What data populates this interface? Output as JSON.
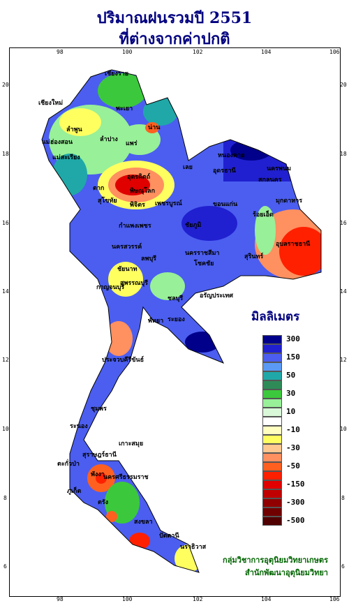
{
  "title": {
    "line1": "ปริมาณฝนรวมปี  2551",
    "line2": "ที่ต่างจากค่าปกติ"
  },
  "axes": {
    "lon_ticks": [
      "98",
      "100",
      "102",
      "104",
      "106"
    ],
    "lat_ticks": [
      "20",
      "18",
      "16",
      "14",
      "12",
      "10",
      "8",
      "6"
    ]
  },
  "legend": {
    "title": "มิลลิเมตร",
    "items": [
      {
        "label": "300",
        "color": "#00008b"
      },
      {
        "label": "",
        "color": "#2020d0"
      },
      {
        "label": "150",
        "color": "#4b5ef0"
      },
      {
        "label": "",
        "color": "#5a9af5"
      },
      {
        "label": "50",
        "color": "#20a8a8"
      },
      {
        "label": "",
        "color": "#2e8b57"
      },
      {
        "label": "30",
        "color": "#3cc83c"
      },
      {
        "label": "",
        "color": "#98f098"
      },
      {
        "label": "10",
        "color": "#d8f8d8"
      },
      {
        "label": "",
        "color": "#ffffff"
      },
      {
        "label": "-10",
        "color": "#ffffc0"
      },
      {
        "label": "",
        "color": "#ffff60"
      },
      {
        "label": "-30",
        "color": "#ffc890"
      },
      {
        "label": "",
        "color": "#ff9060"
      },
      {
        "label": "-50",
        "color": "#ff6020"
      },
      {
        "label": "",
        "color": "#ff2000"
      },
      {
        "label": "-150",
        "color": "#e00000"
      },
      {
        "label": "",
        "color": "#c00000"
      },
      {
        "label": "-300",
        "color": "#900000"
      },
      {
        "label": "",
        "color": "#700000"
      },
      {
        "label": "-500",
        "color": "#500000"
      }
    ]
  },
  "places": [
    {
      "name": "เชียงราย"
    },
    {
      "name": "เชียงใหม่"
    },
    {
      "name": "แม่ฮ่องสอน"
    },
    {
      "name": "พะเยา"
    },
    {
      "name": "ลำปาง"
    },
    {
      "name": "ลำพูน"
    },
    {
      "name": "น่าน"
    },
    {
      "name": "แพร่"
    },
    {
      "name": "แม่สะเรียง"
    },
    {
      "name": "อุตรดิตถ์"
    },
    {
      "name": "ตาก"
    },
    {
      "name": "พิษณุโลก"
    },
    {
      "name": "สุโขทัย"
    },
    {
      "name": "กำแพงเพชร"
    },
    {
      "name": "เพชรบูรณ์"
    },
    {
      "name": "พิจิตร"
    },
    {
      "name": "เลย"
    },
    {
      "name": "หนองคาย"
    },
    {
      "name": "อุดรธานี"
    },
    {
      "name": "นครพนม"
    },
    {
      "name": "สกลนคร"
    },
    {
      "name": "มุกดาหาร"
    },
    {
      "name": "ขอนแก่น"
    },
    {
      "name": "ชัยภูมิ"
    },
    {
      "name": "ร้อยเอ็ด"
    },
    {
      "name": "อุบลราชธานี"
    },
    {
      "name": "นครสวรรค์"
    },
    {
      "name": "ชัยนาท"
    },
    {
      "name": "ลพบุรี"
    },
    {
      "name": "สุพรรณบุรี"
    },
    {
      "name": "กาญจนบุรี"
    },
    {
      "name": "นครราชสีมา"
    },
    {
      "name": "โชคชัย"
    },
    {
      "name": "สุรินทร์"
    },
    {
      "name": "อรัญประเทศ"
    },
    {
      "name": "ชลบุรี"
    },
    {
      "name": "พัทยา"
    },
    {
      "name": "ระยอง"
    },
    {
      "name": "ประจวบคีรีขันธ์"
    },
    {
      "name": "ชุมพร"
    },
    {
      "name": "ระนอง"
    },
    {
      "name": "เกาะสมุย"
    },
    {
      "name": "สุราษฎร์ธานี"
    },
    {
      "name": "ตะกั่วป่า"
    },
    {
      "name": "พังงา"
    },
    {
      "name": "ภูเก็ต"
    },
    {
      "name": "นครศรีธรรมราช"
    },
    {
      "name": "ตรัง"
    },
    {
      "name": "สงขลา"
    },
    {
      "name": "ปัตตานี"
    },
    {
      "name": "นราธิวาส"
    }
  ],
  "credits": {
    "line1": "กลุ่มวิชาการอุตุนิยมวิทยาเกษตร",
    "line2": "สำนักพัฒนาอุตุนิยมวิทยา"
  }
}
